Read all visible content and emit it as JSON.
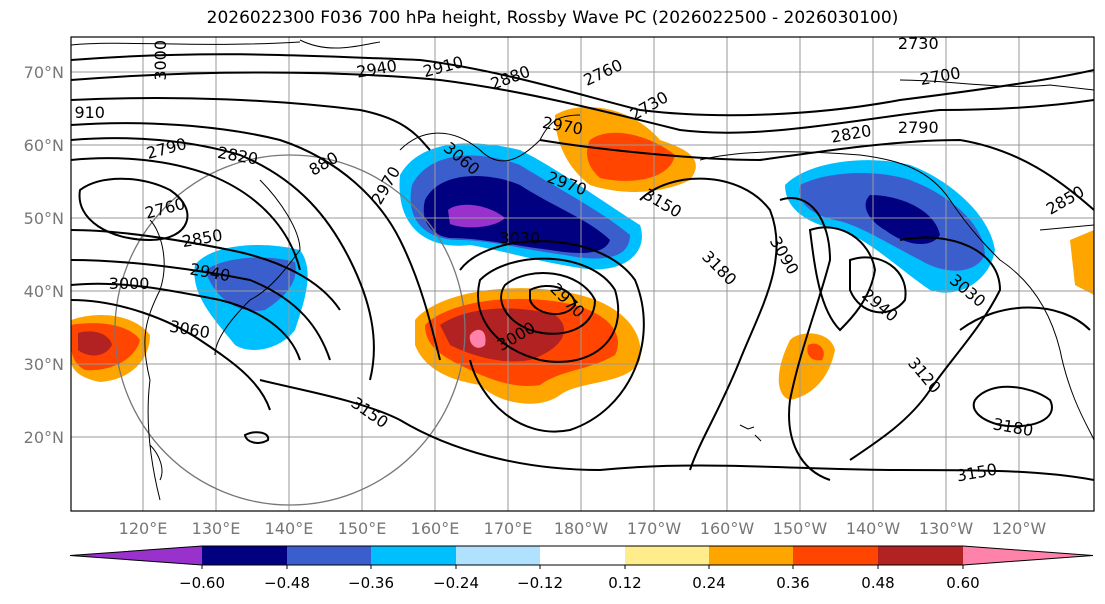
{
  "title": "2026022300 F036 700 hPa height, Rossby Wave PC (2026022500 - 2026030100)",
  "chart_data": {
    "type": "heatmap",
    "title": "2026022300 F036 700 hPa height, Rossby Wave PC (2026022500 - 2026030100)",
    "variable_contours": "700 hPa geopotential height (m)",
    "variable_shaded": "Rossby Wave PC",
    "lon_range": [
      110,
      250
    ],
    "lat_range": [
      10,
      75
    ],
    "lat_ticks": [
      "70°N",
      "60°N",
      "50°N",
      "40°N",
      "30°N",
      "20°N"
    ],
    "lon_ticks": [
      "120°E",
      "130°E",
      "140°E",
      "150°E",
      "160°E",
      "170°E",
      "180°W",
      "170°W",
      "160°W",
      "150°W",
      "140°W",
      "130°W",
      "120°W"
    ],
    "grid": true,
    "colorbar": {
      "ticks": [
        "−0.60",
        "−0.48",
        "−0.36",
        "−0.24",
        "−0.12",
        "0.12",
        "0.24",
        "0.36",
        "0.48",
        "0.60"
      ],
      "colors": [
        "#9932CC",
        "#000080",
        "#3A5FCD",
        "#00BFFF",
        "#B0E2FF",
        "#FFFFFF",
        "#FFEC8B",
        "#FFA500",
        "#FF4500",
        "#B22222",
        "#FF82AB"
      ],
      "extend": "both",
      "placement": "bottom"
    },
    "contour_labels": [
      {
        "text": "3000",
        "lon": 122.3,
        "lat": 71.6,
        "rot": 90
      },
      {
        "text": "2940",
        "lon": 152,
        "lat": 70.5,
        "rot": 10
      },
      {
        "text": "2910",
        "lon": 161.1,
        "lat": 70.8,
        "rot": 15
      },
      {
        "text": "2880",
        "lon": 170.3,
        "lat": 69.3,
        "rot": 20
      },
      {
        "text": "2760",
        "lon": 184.9,
        "lat": 68.9,
        "rot": 25
      },
      {
        "text": "2730",
        "lon": 187.1,
        "lat": 66.8,
        "rot": 30
      },
      {
        "text": "2730",
        "lon": 226.2,
        "lat": 74,
        "rot": 0
      },
      {
        "text": "2700",
        "lon": 229.2,
        "lat": 69.5,
        "rot": 10
      },
      {
        "text": "910",
        "lon": 112.7,
        "lat": 64.5,
        "rot": 0
      },
      {
        "text": "2790",
        "lon": 123.2,
        "lat": 59.6,
        "rot": 15
      },
      {
        "text": "2820",
        "lon": 133,
        "lat": 58.6,
        "rot": -10
      },
      {
        "text": "880",
        "lon": 144.7,
        "lat": 57.5,
        "rot": 30
      },
      {
        "text": "2970",
        "lon": 153.2,
        "lat": 54.5,
        "rot": 60
      },
      {
        "text": "3060",
        "lon": 163.7,
        "lat": 58.2,
        "rot": -40
      },
      {
        "text": "2970",
        "lon": 177.5,
        "lat": 62.7,
        "rot": -10
      },
      {
        "text": "2970",
        "lon": 178.1,
        "lat": 54.8,
        "rot": -20
      },
      {
        "text": "3150",
        "lon": 191.2,
        "lat": 52.1,
        "rot": -30
      },
      {
        "text": "2820",
        "lon": 217,
        "lat": 61.6,
        "rot": 10
      },
      {
        "text": "2790",
        "lon": 226.2,
        "lat": 62.5,
        "rot": 0
      },
      {
        "text": "2850",
        "lon": 246.3,
        "lat": 52.5,
        "rot": 30
      },
      {
        "text": "2760",
        "lon": 123,
        "lat": 51.4,
        "rot": 15
      },
      {
        "text": "2850",
        "lon": 128.1,
        "lat": 46.6,
        "rot": 10
      },
      {
        "text": "2940",
        "lon": 129.2,
        "lat": 43.3,
        "rot": -10
      },
      {
        "text": "3000",
        "lon": 118.1,
        "lat": 41.1,
        "rot": 0
      },
      {
        "text": "3060",
        "lon": 126.4,
        "lat": 34.8,
        "rot": -10
      },
      {
        "text": "3030",
        "lon": 171.6,
        "lat": 47.3,
        "rot": 0
      },
      {
        "text": "3180",
        "lon": 199,
        "lat": 43.2,
        "rot": -45
      },
      {
        "text": "3090",
        "lon": 207.9,
        "lat": 44.9,
        "rot": -60
      },
      {
        "text": "2970",
        "lon": 177.1,
        "lat": 37.4,
        "rot": -45
      },
      {
        "text": "3000",
        "lon": 174.1,
        "lat": 35.5,
        "rot": 30
      },
      {
        "text": "2940",
        "lon": 221,
        "lat": 38.1,
        "rot": -40
      },
      {
        "text": "3030",
        "lon": 233,
        "lat": 40.1,
        "rot": -40
      },
      {
        "text": "3150",
        "lon": 151.1,
        "lat": 23.4,
        "rot": -35
      },
      {
        "text": "3120",
        "lon": 227.1,
        "lat": 28.5,
        "rot": -50
      },
      {
        "text": "3180",
        "lon": 239.2,
        "lat": 21.4,
        "rot": -10
      },
      {
        "text": "3150",
        "lon": 234.2,
        "lat": 15.2,
        "rot": 10
      }
    ]
  }
}
